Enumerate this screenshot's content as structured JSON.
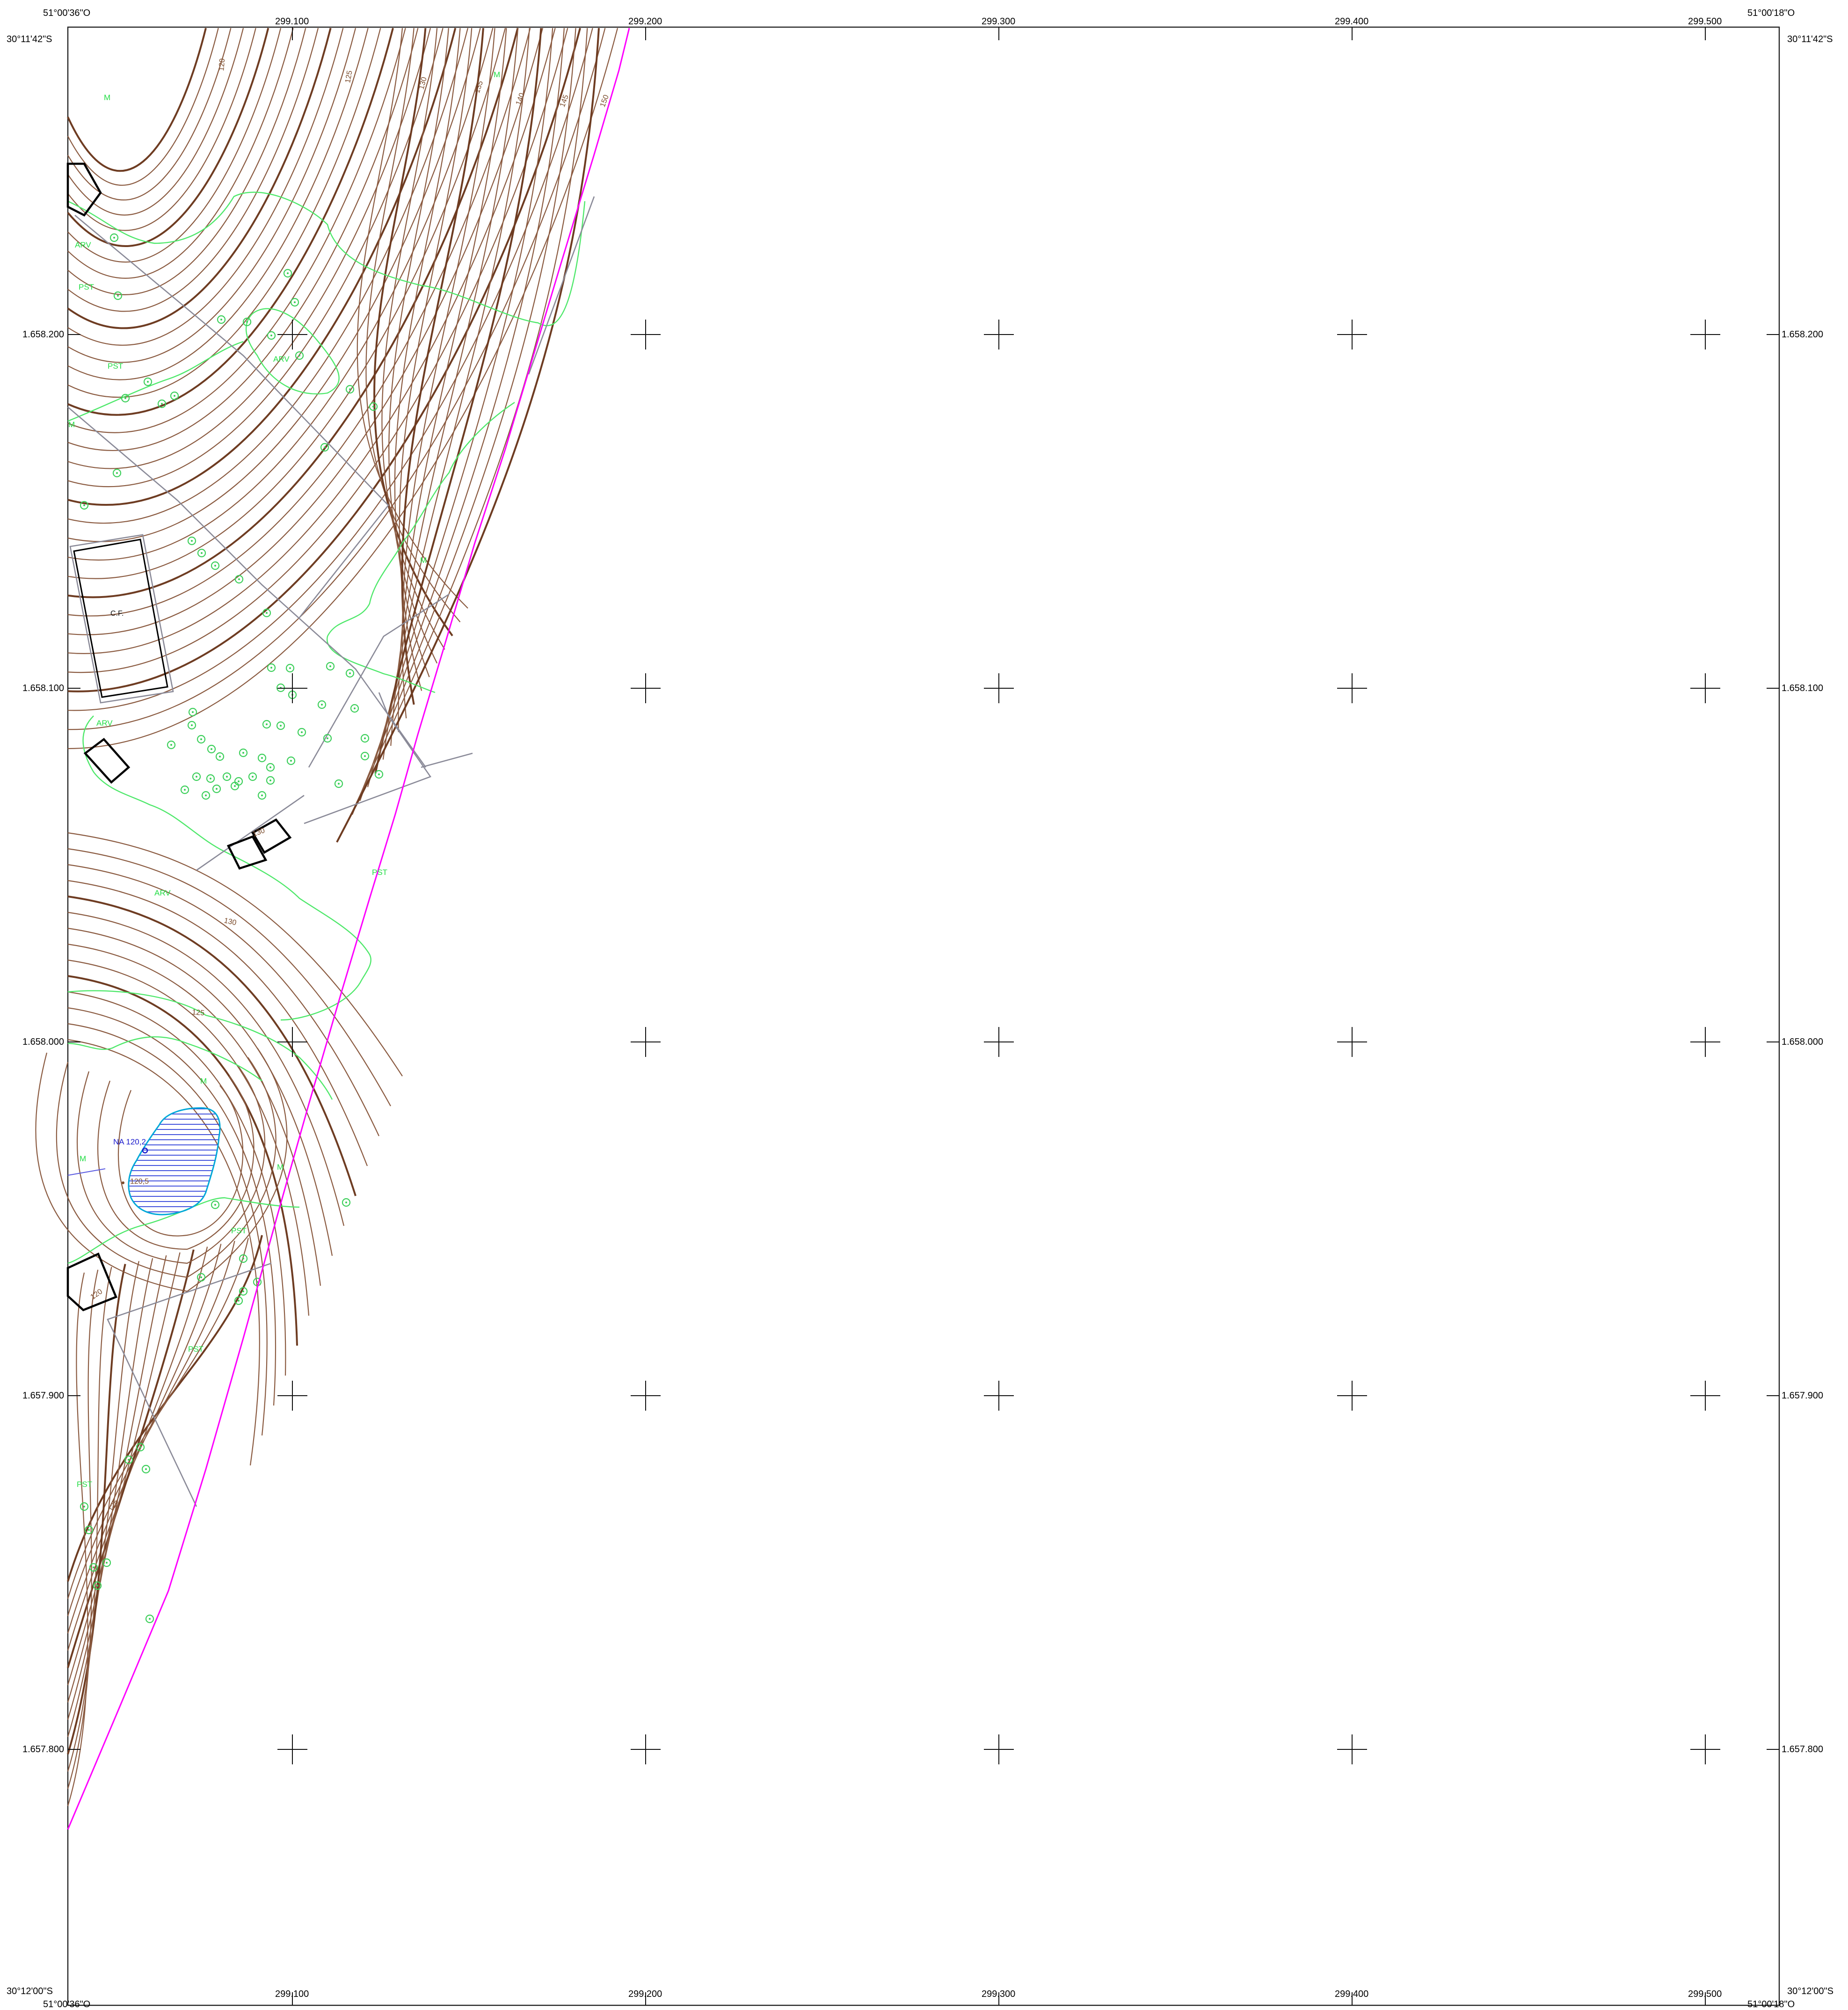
{
  "corners": {
    "top_left_lon": "51°00'36\"O",
    "top_right_lon": "51°00'18\"O",
    "top_left_lat": "30°11'42\"S",
    "top_right_lat": "30°11'42\"S",
    "bottom_left_lat": "30°12'00\"S",
    "bottom_right_lat": "30°12'00\"S",
    "bottom_left_lon": "51°00'36\"O",
    "bottom_right_lon": "51°00'18\"O"
  },
  "easting_labels": [
    "299.100",
    "299.200",
    "299.300",
    "299.400",
    "299.500"
  ],
  "northing_labels": [
    "1.658.200",
    "1.658.100",
    "1.658.000",
    "1.657.900",
    "1.657.800"
  ],
  "land_use_labels": [
    "M",
    "M",
    "ARV",
    "PST",
    "PST",
    "ARV",
    "M",
    "M",
    "ARV",
    "PST",
    "ARV",
    "M",
    "M",
    "M",
    "PST",
    "PST",
    "PST"
  ],
  "contour_labels": [
    "120",
    "125",
    "130",
    "135",
    "140",
    "145",
    "150",
    "130",
    "125",
    "125",
    "120",
    "130"
  ],
  "feature_labels": {
    "building": "C.F.",
    "water_level": "NA 120,2",
    "spot_height": "120,5"
  },
  "colors": {
    "property_line": "#ff00ff",
    "contour": "#8a5a40",
    "contour_major": "#6e3c22",
    "vegetation": "#4ee86a",
    "fence": "#8a8a98",
    "water_fill": "#2a3cd8",
    "water_edge": "#00a8d8",
    "water_label": "#1a1acc"
  },
  "icons": {
    "tree_symbol": "circle-tree-icon",
    "grid_tick": "crosshair-icon"
  }
}
